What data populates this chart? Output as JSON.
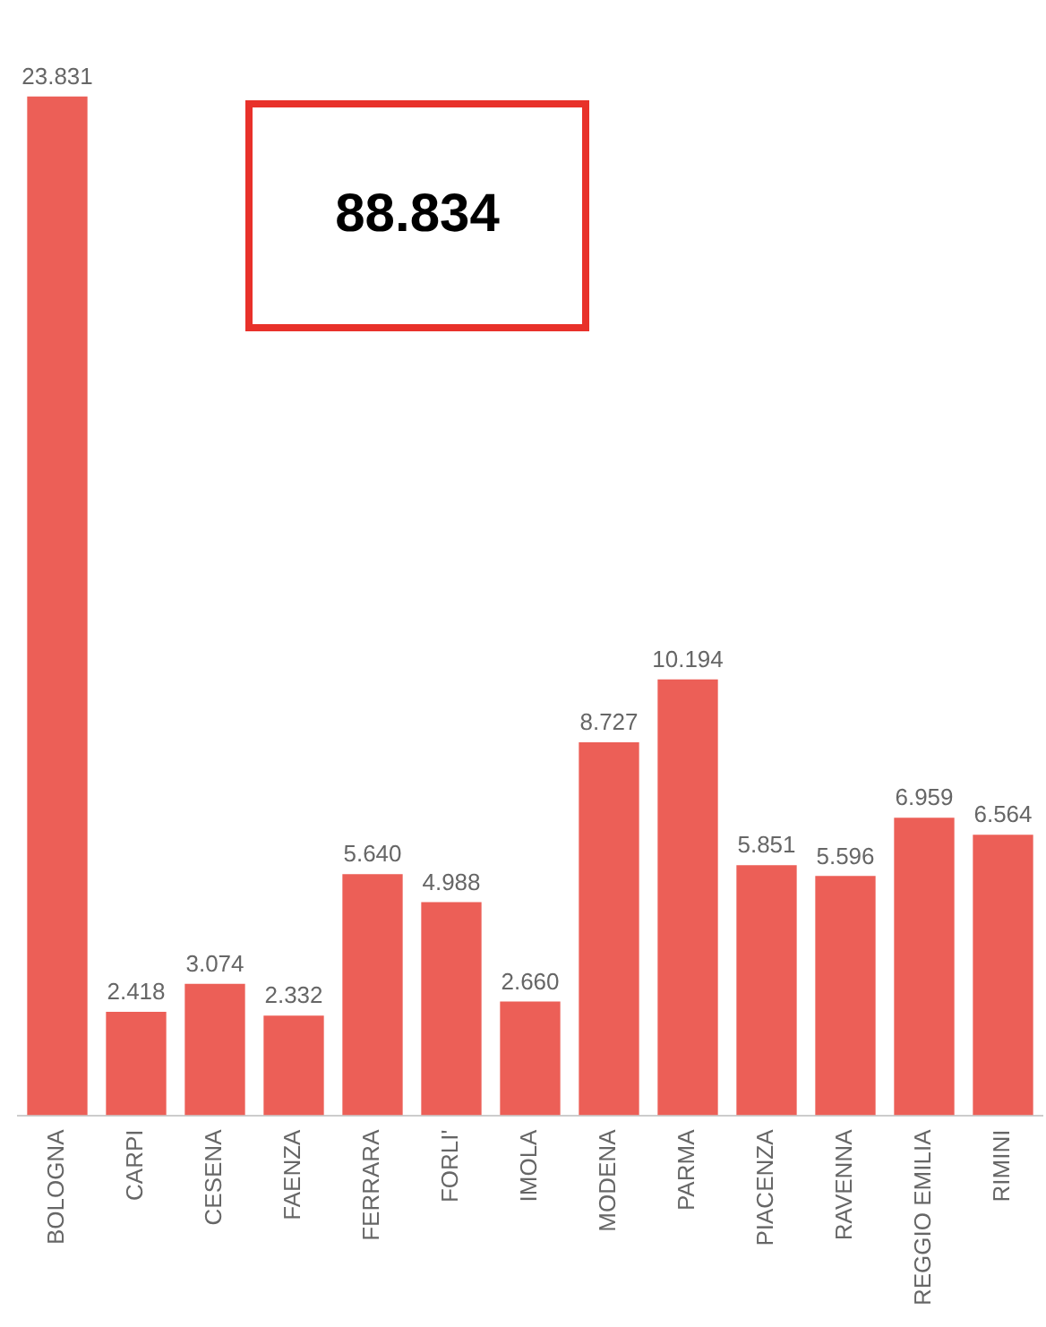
{
  "chart_data": {
    "type": "bar",
    "categories": [
      "BOLOGNA",
      "CARPI",
      "CESENA",
      "FAENZA",
      "FERRARA",
      "FORLI'",
      "IMOLA",
      "MODENA",
      "PARMA",
      "PIACENZA",
      "RAVENNA",
      "REGGIO EMILIA",
      "RIMINI"
    ],
    "values": [
      23831,
      2418,
      3074,
      2332,
      5640,
      4988,
      2660,
      8727,
      10194,
      5851,
      5596,
      6959,
      6564
    ],
    "value_labels": [
      "23.831",
      "2.418",
      "3.074",
      "2.332",
      "5.640",
      "4.988",
      "2.660",
      "8.727",
      "10.194",
      "5.851",
      "5.596",
      "6.959",
      "6.564"
    ],
    "color": "#ec5f57",
    "annotations": [
      "88.834"
    ],
    "grid": false,
    "legend": false
  }
}
